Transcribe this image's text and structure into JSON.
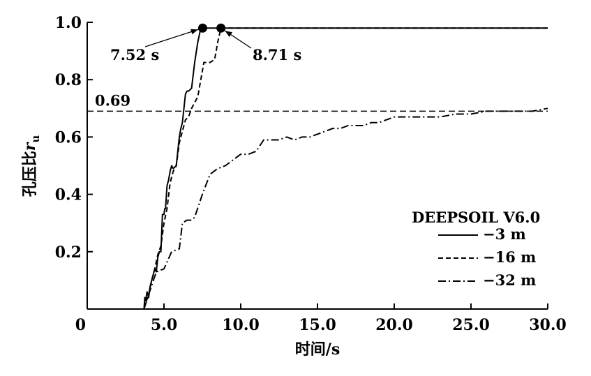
{
  "chart_data": {
    "type": "line",
    "title": "",
    "xlabel": "时间/s",
    "ylabel": "孔压比r_u",
    "ylabel_main": "孔压比",
    "ylabel_symbol": "r",
    "ylabel_subscript": "u",
    "xlim": [
      0,
      30
    ],
    "ylim": [
      0,
      1.0
    ],
    "x_ticks": [
      0,
      5,
      10,
      15,
      20,
      25,
      30
    ],
    "x_tick_labels": [
      "0",
      "5.0",
      "10.0",
      "15.0",
      "20.0",
      "25.0",
      "30.0"
    ],
    "y_ticks": [
      0.2,
      0.4,
      0.6,
      0.8,
      1.0
    ],
    "y_tick_labels": [
      "0.2",
      "0.4",
      "0.6",
      "0.8",
      "1.0"
    ],
    "grid": false,
    "legend_title": "DEEPSOIL V6.0",
    "legend_position": "bottom-right",
    "series": [
      {
        "name": "−3 m",
        "style": "solid",
        "x": [
          3.7,
          3.75,
          3.8,
          3.9,
          4.0,
          4.1,
          4.2,
          4.3,
          4.4,
          4.5,
          4.6,
          4.7,
          4.8,
          4.9,
          5.0,
          5.05,
          5.1,
          5.2,
          5.3,
          5.4,
          5.5,
          5.6,
          5.8,
          6.0,
          6.1,
          6.2,
          6.4,
          6.5,
          6.6,
          6.8,
          7.0,
          7.2,
          7.4,
          7.52,
          7.6,
          30.0
        ],
        "y": [
          0.0,
          0.04,
          0.03,
          0.06,
          0.04,
          0.08,
          0.1,
          0.12,
          0.14,
          0.13,
          0.18,
          0.2,
          0.2,
          0.33,
          0.33,
          0.35,
          0.35,
          0.43,
          0.45,
          0.48,
          0.5,
          0.49,
          0.5,
          0.6,
          0.63,
          0.65,
          0.75,
          0.76,
          0.76,
          0.77,
          0.86,
          0.93,
          0.98,
          0.98,
          0.98,
          0.98
        ]
      },
      {
        "name": "−16 m",
        "style": "dashed",
        "x": [
          3.7,
          3.8,
          4.0,
          4.2,
          4.4,
          4.6,
          4.8,
          5.0,
          5.2,
          5.4,
          5.6,
          5.8,
          6.0,
          6.2,
          6.4,
          6.6,
          6.8,
          7.0,
          7.2,
          7.4,
          7.6,
          7.8,
          8.0,
          8.3,
          8.5,
          8.71,
          8.8,
          30.0
        ],
        "y": [
          0.0,
          0.02,
          0.05,
          0.1,
          0.14,
          0.19,
          0.22,
          0.3,
          0.35,
          0.44,
          0.48,
          0.5,
          0.58,
          0.62,
          0.66,
          0.67,
          0.7,
          0.72,
          0.74,
          0.8,
          0.86,
          0.86,
          0.86,
          0.87,
          0.93,
          0.98,
          0.98,
          0.98
        ]
      },
      {
        "name": "−32 m",
        "style": "dashdot",
        "x": [
          3.7,
          4.0,
          4.5,
          5.0,
          5.5,
          6.0,
          6.2,
          6.5,
          6.8,
          7.0,
          7.5,
          8.0,
          8.5,
          9.0,
          9.5,
          10.0,
          10.5,
          11.0,
          11.5,
          12.0,
          12.5,
          13.0,
          13.5,
          14.0,
          14.5,
          15.0,
          15.5,
          16.0,
          16.5,
          17.0,
          17.5,
          18.0,
          18.5,
          19.0,
          19.5,
          20.0,
          21.0,
          22.0,
          23.0,
          24.0,
          25.0,
          26.0,
          27.0,
          28.0,
          29.0,
          30.0
        ],
        "y": [
          0.0,
          0.05,
          0.13,
          0.14,
          0.2,
          0.21,
          0.3,
          0.31,
          0.31,
          0.32,
          0.4,
          0.47,
          0.49,
          0.5,
          0.52,
          0.54,
          0.54,
          0.55,
          0.59,
          0.59,
          0.59,
          0.6,
          0.59,
          0.6,
          0.6,
          0.61,
          0.62,
          0.63,
          0.63,
          0.64,
          0.64,
          0.64,
          0.65,
          0.65,
          0.66,
          0.67,
          0.67,
          0.67,
          0.67,
          0.68,
          0.68,
          0.69,
          0.69,
          0.69,
          0.69,
          0.7
        ]
      }
    ],
    "reference_line": {
      "y": 0.69,
      "label": "0.69",
      "style": "dashed"
    },
    "markers": [
      {
        "x": 7.52,
        "y": 0.98,
        "label": "7.52 s"
      },
      {
        "x": 8.71,
        "y": 0.98,
        "label": "8.71 s"
      }
    ]
  }
}
